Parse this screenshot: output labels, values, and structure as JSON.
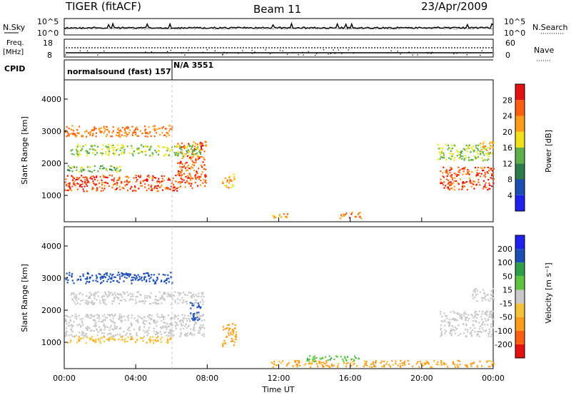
{
  "header": {
    "left": "TIGER (fitACF)",
    "center": "Beam 11",
    "right": "23/Apr/2009"
  },
  "noise_panel": {
    "left_label": "N.Sky",
    "left_ticks": [
      "10^5",
      "10^0"
    ],
    "right_ticks": [
      "10^5",
      "10^0"
    ],
    "right_label": "N.Search"
  },
  "freq_panel": {
    "left_label_1": "Freq.",
    "left_label_2": "[MHz]",
    "left_ticks": [
      "18",
      "8"
    ],
    "right_ticks": [
      "60",
      "0"
    ],
    "right_label": "Nave"
  },
  "cpid": {
    "label": "CPID",
    "mode_1": "normalsound (fast) 157",
    "mode_2": "N/A 3551",
    "switch_time_h": 6.0
  },
  "chart_data": [
    {
      "type": "heatmap",
      "name": "Power",
      "ylabel": "Slant Range [km]",
      "xlabel": "",
      "xlim_h": [
        0,
        24
      ],
      "ylim": [
        180,
        4600
      ],
      "yticks": [
        1000,
        2000,
        3000,
        4000
      ],
      "colorbar": {
        "label": "Power [dB]",
        "ticks": [
          4,
          8,
          12,
          16,
          20,
          24,
          28
        ],
        "colors": [
          "#1f22ee",
          "#1b4fb4",
          "#2d7a4a",
          "#5db04a",
          "#f0e01a",
          "#ff9c1a",
          "#ff6010",
          "#e51010"
        ]
      },
      "regions": [
        {
          "t": [
            0.0,
            6.3
          ],
          "r": [
            1150,
            1650
          ],
          "level": 27
        },
        {
          "t": [
            6.3,
            7.9
          ],
          "r": [
            1250,
            2700
          ],
          "level": 26
        },
        {
          "t": [
            0.0,
            6.0
          ],
          "r": [
            2850,
            3200
          ],
          "level": 24
        },
        {
          "t": [
            0.3,
            7.6
          ],
          "r": [
            2250,
            2600
          ],
          "level": 16
        },
        {
          "t": [
            0.0,
            3.2
          ],
          "r": [
            1750,
            1950
          ],
          "level": 14
        },
        {
          "t": [
            8.8,
            9.5
          ],
          "r": [
            1250,
            1700
          ],
          "level": 22
        },
        {
          "t": [
            15.4,
            16.6
          ],
          "r": [
            300,
            500
          ],
          "level": 25
        },
        {
          "t": [
            11.6,
            12.6
          ],
          "r": [
            300,
            450
          ],
          "level": 22
        },
        {
          "t": [
            21.0,
            24.0
          ],
          "r": [
            1200,
            1900
          ],
          "level": 27
        },
        {
          "t": [
            20.8,
            23.8
          ],
          "r": [
            2100,
            2600
          ],
          "level": 16
        },
        {
          "t": [
            23.2,
            24.0
          ],
          "r": [
            2300,
            2700
          ],
          "level": 20
        }
      ]
    },
    {
      "type": "heatmap",
      "name": "Velocity",
      "ylabel": "Slant Range [km]",
      "xlabel": "Time UT",
      "xlim_h": [
        0,
        24
      ],
      "ylim": [
        180,
        4600
      ],
      "yticks": [
        1000,
        2000,
        3000,
        4000
      ],
      "xticks": [
        "00:00",
        "04:00",
        "08:00",
        "12:00",
        "16:00",
        "20:00",
        "00:00"
      ],
      "colorbar": {
        "label": "Velocity [m s⁻¹]",
        "ticks": [
          -200,
          -100,
          -50,
          -15,
          15,
          50,
          100,
          200
        ],
        "colors": [
          "#e51010",
          "#ff6010",
          "#ff9c1a",
          "#f4c23a",
          "#c8c8c8",
          "#5fc43d",
          "#2e9e4a",
          "#1b4fb4",
          "#1f22ee"
        ]
      },
      "regions": [
        {
          "t": [
            0.0,
            7.8
          ],
          "r": [
            1200,
            1900
          ],
          "level": 0
        },
        {
          "t": [
            0.3,
            7.8
          ],
          "r": [
            2200,
            2600
          ],
          "level": 0
        },
        {
          "t": [
            0.0,
            6.0
          ],
          "r": [
            1000,
            1200
          ],
          "level": -40
        },
        {
          "t": [
            0.0,
            6.0
          ],
          "r": [
            2850,
            3200
          ],
          "level": 150
        },
        {
          "t": [
            7.0,
            7.6
          ],
          "r": [
            1700,
            2300
          ],
          "level": 120
        },
        {
          "t": [
            8.8,
            9.6
          ],
          "r": [
            900,
            1600
          ],
          "level": -60
        },
        {
          "t": [
            11.5,
            24.0
          ],
          "r": [
            250,
            450
          ],
          "level": -60
        },
        {
          "t": [
            13.5,
            16.5
          ],
          "r": [
            420,
            600
          ],
          "level": 40
        },
        {
          "t": [
            21.0,
            24.0
          ],
          "r": [
            1200,
            2000
          ],
          "level": 0
        },
        {
          "t": [
            22.8,
            24.0
          ],
          "r": [
            2300,
            2700
          ],
          "level": 0
        }
      ]
    }
  ]
}
